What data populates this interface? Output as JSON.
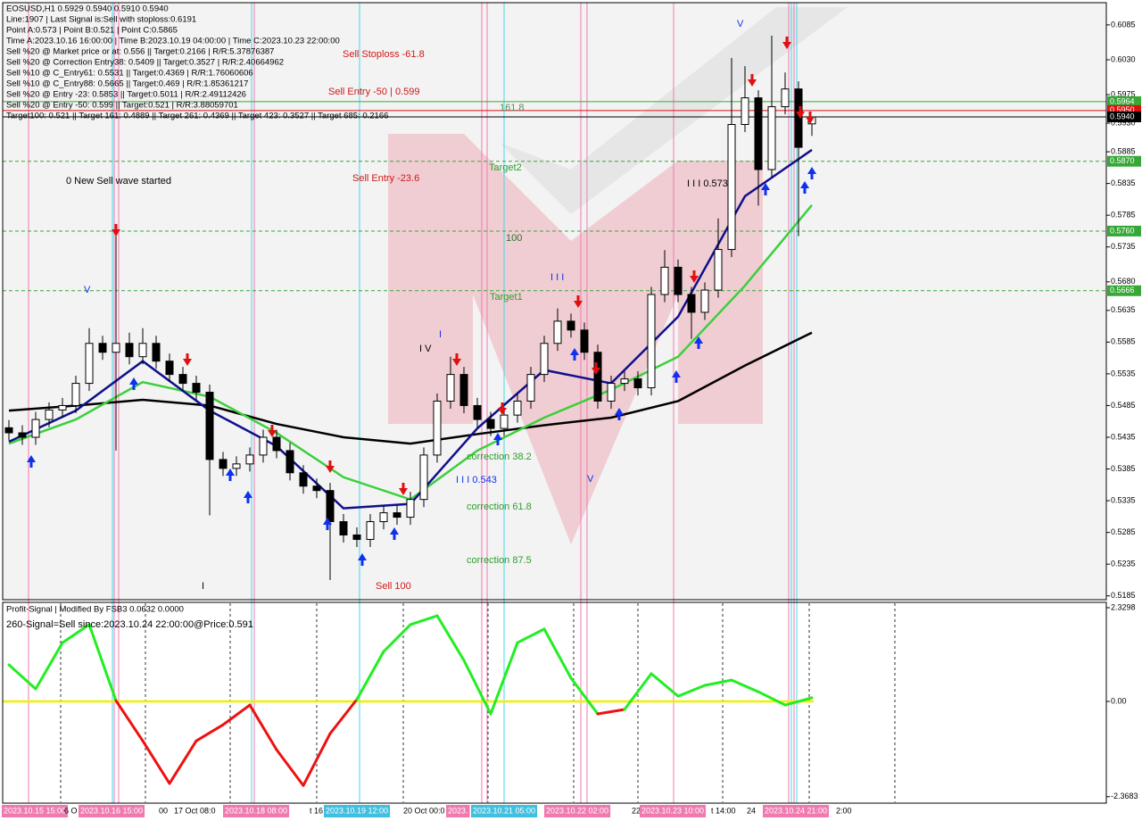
{
  "chart_data": {
    "type": "candlestick",
    "info": [
      "EOSUSD,H1  0.5929 0.5940 0.5910 0.5940",
      "Line:1907 | Last Signal is:Sell with stoploss:0.6191",
      "Point A:0.573 | Point B:0.521 | Point C:0.5865",
      "Time A:2023.10.16 16:00:00 | Time B:2023.10.19 04:00:00 | Time C:2023.10.23 22:00:00",
      "Sell %20 @ Market price or at: 0.556 || Target:0.2166 | R/R:5.37876387",
      "Sell %20 @ Correction Entry38: 0.5409 || Target:0.3527 | R/R:2.40664962",
      "Sell %10 @ C_Entry61: 0.5531 || Target:0.4369 | R/R:1.76060606",
      "Sell %10 @ C_Entry88: 0.5665 || Target:0.469 | R/R:1.85361217",
      "Sell %20 @ Entry -23: 0.5853 || Target:0.5011 | R/R:2.49112426",
      "Sell %20 @ Entry -50: 0.599 || Target:0.521 | R/R:3.88059701",
      "Target100: 0.521 || Target 161: 0.4889 || Target 261: 0.4369 || Target 423: 0.3527 || Target 685: 0.2166"
    ],
    "annotations": [
      "Sell  Stoploss -61.8",
      "Sell Entry -50 | 0.599",
      "161.8",
      "Target2",
      "Sell Entry -23.6",
      "0 New Sell wave started",
      "100",
      "Target1",
      "I I I",
      "V",
      "V",
      "I V",
      "I",
      "I I I 0.573",
      "correction 38.2",
      "I I I 0.543",
      "V",
      "correction 61.8",
      "correction 87.5",
      "Sell 100",
      "I"
    ],
    "up_color": "#ffffff",
    "down_color": "#000000",
    "open": [
      0.545,
      0.5442,
      0.5435,
      0.5463,
      0.5478,
      0.5485,
      0.552,
      0.5583,
      0.5569,
      0.5583,
      0.5562,
      0.5583,
      0.5555,
      0.5534,
      0.552,
      0.5506,
      0.54,
      0.5386,
      0.5393,
      0.5407,
      0.5435,
      0.5414,
      0.5379,
      0.5358,
      0.5351,
      0.5302,
      0.5281,
      0.5274,
      0.5302,
      0.5316,
      0.5309,
      0.5337,
      0.5407,
      0.5492,
      0.5534,
      0.5485,
      0.5463,
      0.5449,
      0.547,
      0.5492,
      0.5534,
      0.5583,
      0.5618,
      0.5604,
      0.5569,
      0.5492,
      0.552,
      0.5527,
      0.5513,
      0.566,
      0.5703,
      0.566,
      0.5632,
      0.5667,
      0.5731,
      0.5928,
      0.597,
      0.5857,
      0.5956,
      0.5984,
      0.5929
    ],
    "high": [
      0.5462,
      0.5454,
      0.5475,
      0.549,
      0.5497,
      0.5532,
      0.5607,
      0.5595,
      0.5756,
      0.56,
      0.5607,
      0.5595,
      0.5567,
      0.5546,
      0.5532,
      0.5518,
      0.5412,
      0.5405,
      0.5419,
      0.5447,
      0.5447,
      0.5426,
      0.5391,
      0.537,
      0.5363,
      0.5314,
      0.5293,
      0.5314,
      0.5328,
      0.5328,
      0.5349,
      0.5419,
      0.5504,
      0.5562,
      0.5546,
      0.5497,
      0.5475,
      0.5482,
      0.5504,
      0.5546,
      0.5595,
      0.5638,
      0.563,
      0.5616,
      0.5581,
      0.5532,
      0.5539,
      0.5539,
      0.5672,
      0.573,
      0.5715,
      0.5672,
      0.5679,
      0.578,
      0.6033,
      0.602,
      0.5982,
      0.6068,
      0.601,
      0.5996,
      0.594
    ],
    "low": [
      0.543,
      0.5423,
      0.5423,
      0.5451,
      0.5466,
      0.5473,
      0.5508,
      0.5557,
      0.5414,
      0.555,
      0.555,
      0.5543,
      0.5522,
      0.5508,
      0.5494,
      0.5312,
      0.5374,
      0.5374,
      0.5381,
      0.5395,
      0.5402,
      0.5367,
      0.5346,
      0.5339,
      0.521,
      0.5269,
      0.5262,
      0.5262,
      0.529,
      0.5297,
      0.5297,
      0.5325,
      0.5395,
      0.548,
      0.5473,
      0.5451,
      0.5437,
      0.5437,
      0.5458,
      0.548,
      0.5522,
      0.5571,
      0.5592,
      0.5557,
      0.548,
      0.548,
      0.5508,
      0.5501,
      0.5501,
      0.5648,
      0.5648,
      0.559,
      0.562,
      0.5655,
      0.5719,
      0.5916,
      0.58,
      0.5845,
      0.5944,
      0.5752,
      0.591
    ],
    "close": [
      0.5442,
      0.5435,
      0.5463,
      0.5478,
      0.5485,
      0.552,
      0.5583,
      0.5569,
      0.5583,
      0.5562,
      0.5583,
      0.5555,
      0.5534,
      0.552,
      0.5506,
      0.54,
      0.5386,
      0.5393,
      0.5407,
      0.5435,
      0.5414,
      0.5379,
      0.5358,
      0.5351,
      0.5302,
      0.5281,
      0.5274,
      0.5302,
      0.5316,
      0.5309,
      0.5337,
      0.5407,
      0.5492,
      0.5534,
      0.5485,
      0.5463,
      0.5449,
      0.547,
      0.5492,
      0.5534,
      0.5583,
      0.5618,
      0.5604,
      0.5569,
      0.5492,
      0.552,
      0.5527,
      0.5513,
      0.566,
      0.5703,
      0.566,
      0.5632,
      0.5667,
      0.5731,
      0.5928,
      0.597,
      0.5857,
      0.5956,
      0.5984,
      0.5892,
      0.594
    ],
    "series": [
      {
        "color": "#000000",
        "values": [
          0.5477,
          0.5485,
          0.5494,
          0.5485,
          0.5456,
          0.5435,
          0.5425,
          0.544,
          0.5454,
          0.5466,
          0.5492,
          0.5548,
          0.56
        ]
      },
      {
        "color": "#3ccf3c",
        "values": [
          0.5425,
          0.5463,
          0.5522,
          0.5499,
          0.5442,
          0.5372,
          0.5337,
          0.5414,
          0.5466,
          0.551,
          0.5562,
          0.5674,
          0.5801
        ]
      },
      {
        "color": "#10108c",
        "values": [
          0.5428,
          0.5477,
          0.5555,
          0.5477,
          0.5421,
          0.5323,
          0.533,
          0.5449,
          0.5541,
          0.552,
          0.5625,
          0.5815,
          0.5888
        ]
      }
    ],
    "levels": [
      {
        "value": 0.5964,
        "color": "#37a837"
      },
      {
        "value": 0.595,
        "label": "0.5950",
        "color": "#e01010"
      },
      {
        "value": 0.594,
        "label": "0.5940",
        "color": "#000000"
      },
      {
        "value": 0.587,
        "label": "0.5870",
        "color": "#37a837"
      },
      {
        "value": 0.576,
        "label": "0.5760",
        "color": "#37a837"
      },
      {
        "value": 0.5666,
        "color": "#37a837"
      }
    ],
    "ylim": [
      0.5179,
      0.612
    ],
    "yticks": [
      0.6085,
      {
        "value": 0.603,
        "label": "0.6030"
      },
      0.5975,
      {
        "value": 0.593,
        "label": "0.5930"
      },
      0.5885,
      0.5835,
      0.5785,
      0.5735,
      {
        "value": 0.568,
        "label": "0.5680"
      },
      0.5635,
      0.5585,
      0.5535,
      0.5485,
      0.5435,
      0.5385,
      0.5335,
      0.5285,
      0.5235,
      0.5185
    ],
    "time_labels": [
      "2023.10.15 15:00",
      "6 O",
      "2023.10.16 15:00",
      "00",
      "17 Oct 08:0",
      "2023.10.18 08:00",
      "t 16",
      "2023.10.19 12:00",
      "20 Oct 00:0",
      "2023.",
      "2023.10.21 05:00",
      "2023.10.22 02:00",
      "22",
      "2023.10.23 10:00",
      "t 14:00",
      "24",
      "2023.10.24 21:00",
      "2:00"
    ],
    "indicator": {
      "title": "Profit-Signal | Modified By FSB3 0.0632 0.0000",
      "signal": "260-Signal=Sell since:2023.10.24 22:00:00@Price:0.591",
      "up_color": "#22ee22",
      "down_color": "#ee1111",
      "zero_color": "#f0f000",
      "values": [
        0.91,
        0.31,
        1.46,
        1.91,
        0.02,
        -0.98,
        -2.04,
        -0.98,
        -0.58,
        -0.09,
        -1.2,
        -2.09,
        -0.8,
        0.05,
        1.24,
        1.91,
        2.13,
        1.02,
        -0.31,
        1.46,
        1.8,
        0.58,
        -0.31,
        -0.2,
        0.69,
        0.13,
        0.4,
        0.53,
        0.24,
        -0.09,
        0.09
      ],
      "ylim": [
        -2.529,
        2.463
      ],
      "yticks": [
        2.3298,
        {
          "value": 0,
          "label": "0.00"
        },
        -2.3683
      ]
    }
  }
}
